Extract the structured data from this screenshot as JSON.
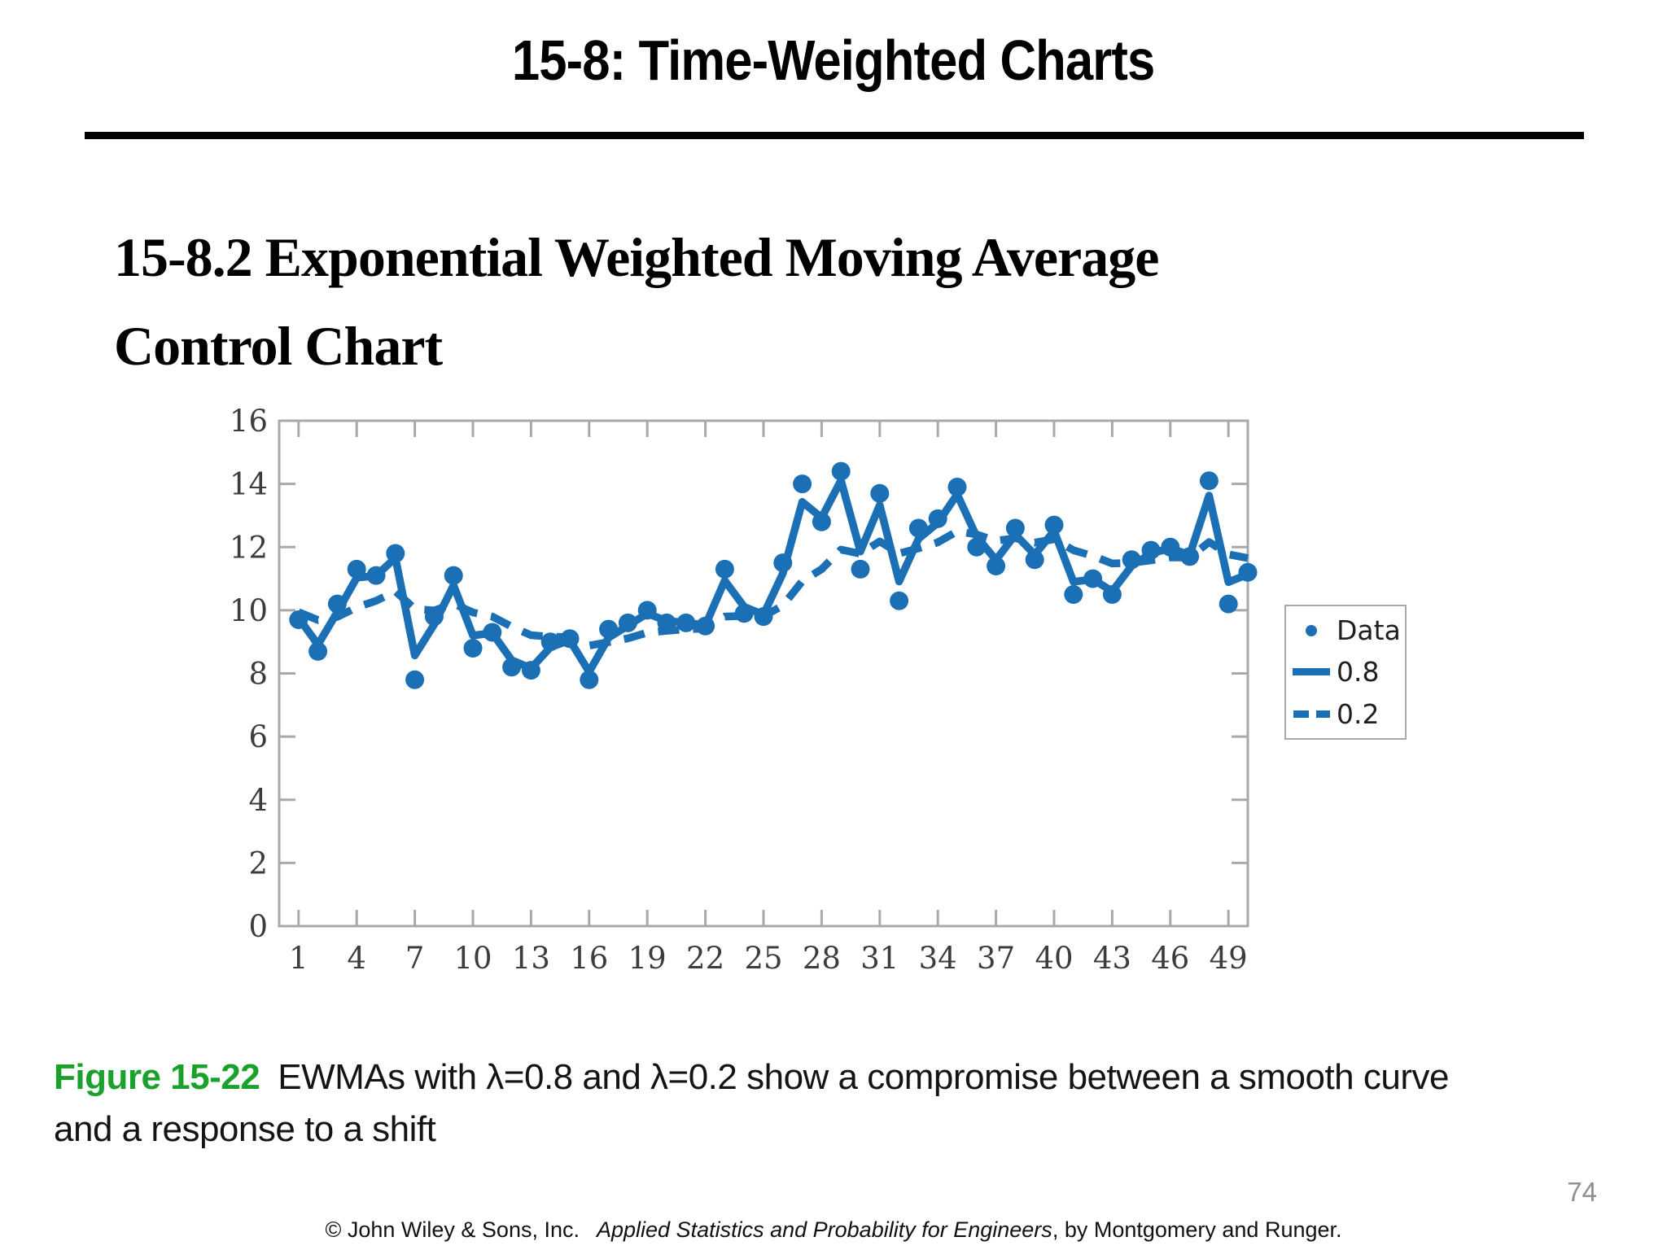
{
  "slide": {
    "title": "15-8: Time-Weighted Charts",
    "heading": {
      "line1": "15-8.2 Exponential Weighted Moving Average",
      "line2": "Control Chart"
    },
    "caption": {
      "label": "Figure 15-22",
      "text_line1": "EWMAs with λ=0.8 and λ=0.2 show a compromise between a smooth curve",
      "text_line2": "and a response to a shift",
      "label_color": "#1aa12b"
    },
    "page_number": "74",
    "footer": {
      "prefix": "© John Wiley & Sons, Inc.  ",
      "book_title": "Applied Statistics and Probability for Engineers",
      "suffix": ", by Montgomery and Runger."
    }
  },
  "chart_data": {
    "type": "line",
    "title": "",
    "xlabel": "",
    "ylabel": "",
    "xlim": [
      0,
      50
    ],
    "ylim": [
      0,
      16
    ],
    "grid": false,
    "xticks": [
      1,
      4,
      7,
      10,
      13,
      16,
      19,
      22,
      25,
      28,
      31,
      34,
      37,
      40,
      43,
      46,
      49
    ],
    "yticks": [
      0,
      2,
      4,
      6,
      8,
      10,
      12,
      14,
      16
    ],
    "legend": {
      "position": "right",
      "entries": [
        "Data",
        "0.8",
        "0.2"
      ]
    },
    "colors": {
      "series_blue": "#1b6fb5",
      "frame_gray": "#a9a9a9",
      "tick_label": "#3c3c3c"
    },
    "x": [
      1,
      2,
      3,
      4,
      5,
      6,
      7,
      8,
      9,
      10,
      11,
      12,
      13,
      14,
      15,
      16,
      17,
      18,
      19,
      20,
      21,
      22,
      23,
      24,
      25,
      26,
      27,
      28,
      29,
      30,
      31,
      32,
      33,
      34,
      35,
      36,
      37,
      38,
      39,
      40,
      41,
      42,
      43,
      44,
      45,
      46,
      47,
      48,
      49,
      50
    ],
    "series": [
      {
        "name": "Data",
        "style": "scatter",
        "values": [
          9.7,
          8.7,
          10.2,
          11.3,
          11.1,
          11.8,
          7.8,
          9.8,
          11.1,
          8.8,
          9.3,
          8.2,
          8.1,
          9.0,
          9.1,
          7.8,
          9.4,
          9.6,
          10.0,
          9.6,
          9.6,
          9.5,
          11.3,
          9.9,
          9.8,
          11.5,
          14.0,
          12.8,
          14.4,
          11.3,
          13.7,
          10.3,
          12.6,
          12.9,
          13.9,
          12.0,
          11.4,
          12.6,
          11.6,
          12.7,
          10.5,
          11.0,
          10.5,
          11.6,
          11.9,
          12.0,
          11.7,
          14.1,
          10.2,
          11.2
        ]
      },
      {
        "name": "0.8",
        "style": "solid",
        "values": [
          9.76,
          8.91,
          9.94,
          11.03,
          11.09,
          11.66,
          8.57,
          9.55,
          10.79,
          9.2,
          9.28,
          8.42,
          8.16,
          8.83,
          9.05,
          8.05,
          9.13,
          9.51,
          9.9,
          9.66,
          9.61,
          9.52,
          10.94,
          10.11,
          9.86,
          11.17,
          13.43,
          12.93,
          14.11,
          11.86,
          13.33,
          10.91,
          12.26,
          12.77,
          13.67,
          12.33,
          11.59,
          12.4,
          11.76,
          12.51,
          10.9,
          10.98,
          10.6,
          11.4,
          11.8,
          11.96,
          11.75,
          13.63,
          10.89,
          11.14
        ]
      },
      {
        "name": "0.2",
        "style": "dashed",
        "values": [
          9.94,
          9.69,
          9.79,
          10.09,
          10.3,
          10.6,
          10.04,
          9.99,
          10.21,
          9.93,
          9.8,
          9.48,
          9.21,
          9.16,
          9.15,
          8.88,
          8.99,
          9.11,
          9.29,
          9.35,
          9.4,
          9.42,
          9.8,
          9.82,
          9.81,
          10.15,
          10.92,
          11.3,
          11.92,
          11.79,
          12.18,
          11.8,
          11.96,
          12.15,
          12.5,
          12.4,
          12.2,
          12.28,
          12.14,
          12.25,
          11.9,
          11.72,
          11.48,
          11.5,
          11.58,
          11.67,
          11.67,
          12.16,
          11.77,
          11.65
        ]
      }
    ]
  }
}
